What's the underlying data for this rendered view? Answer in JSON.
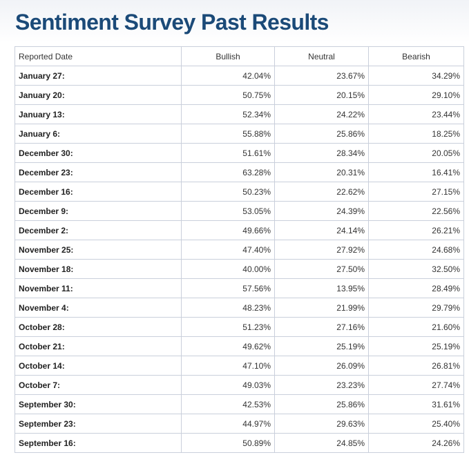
{
  "page": {
    "title": "Sentiment Survey Past Results"
  },
  "table": {
    "headers": {
      "date": "Reported Date",
      "bullish": "Bullish",
      "neutral": "Neutral",
      "bearish": "Bearish"
    },
    "rows": [
      {
        "date": "January 27:",
        "bullish": "42.04%",
        "neutral": "23.67%",
        "bearish": "34.29%"
      },
      {
        "date": "January 20:",
        "bullish": "50.75%",
        "neutral": "20.15%",
        "bearish": "29.10%"
      },
      {
        "date": "January 13:",
        "bullish": "52.34%",
        "neutral": "24.22%",
        "bearish": "23.44%"
      },
      {
        "date": "January 6:",
        "bullish": "55.88%",
        "neutral": "25.86%",
        "bearish": "18.25%"
      },
      {
        "date": "December 30:",
        "bullish": "51.61%",
        "neutral": "28.34%",
        "bearish": "20.05%"
      },
      {
        "date": "December 23:",
        "bullish": "63.28%",
        "neutral": "20.31%",
        "bearish": "16.41%"
      },
      {
        "date": "December 16:",
        "bullish": "50.23%",
        "neutral": "22.62%",
        "bearish": "27.15%"
      },
      {
        "date": "December 9:",
        "bullish": "53.05%",
        "neutral": "24.39%",
        "bearish": "22.56%"
      },
      {
        "date": "December 2:",
        "bullish": "49.66%",
        "neutral": "24.14%",
        "bearish": "26.21%"
      },
      {
        "date": "November 25:",
        "bullish": "47.40%",
        "neutral": "27.92%",
        "bearish": "24.68%"
      },
      {
        "date": "November 18:",
        "bullish": "40.00%",
        "neutral": "27.50%",
        "bearish": "32.50%"
      },
      {
        "date": "November 11:",
        "bullish": "57.56%",
        "neutral": "13.95%",
        "bearish": "28.49%"
      },
      {
        "date": "November 4:",
        "bullish": "48.23%",
        "neutral": "21.99%",
        "bearish": "29.79%"
      },
      {
        "date": "October 28:",
        "bullish": "51.23%",
        "neutral": "27.16%",
        "bearish": "21.60%"
      },
      {
        "date": "October 21:",
        "bullish": "49.62%",
        "neutral": "25.19%",
        "bearish": "25.19%"
      },
      {
        "date": "October 14:",
        "bullish": "47.10%",
        "neutral": "26.09%",
        "bearish": "26.81%"
      },
      {
        "date": "October 7:",
        "bullish": "49.03%",
        "neutral": "23.23%",
        "bearish": "27.74%"
      },
      {
        "date": "September 30:",
        "bullish": "42.53%",
        "neutral": "25.86%",
        "bearish": "31.61%"
      },
      {
        "date": "September 23:",
        "bullish": "44.97%",
        "neutral": "29.63%",
        "bearish": "25.40%"
      },
      {
        "date": "September 16:",
        "bullish": "50.89%",
        "neutral": "24.85%",
        "bearish": "24.26%"
      }
    ]
  }
}
